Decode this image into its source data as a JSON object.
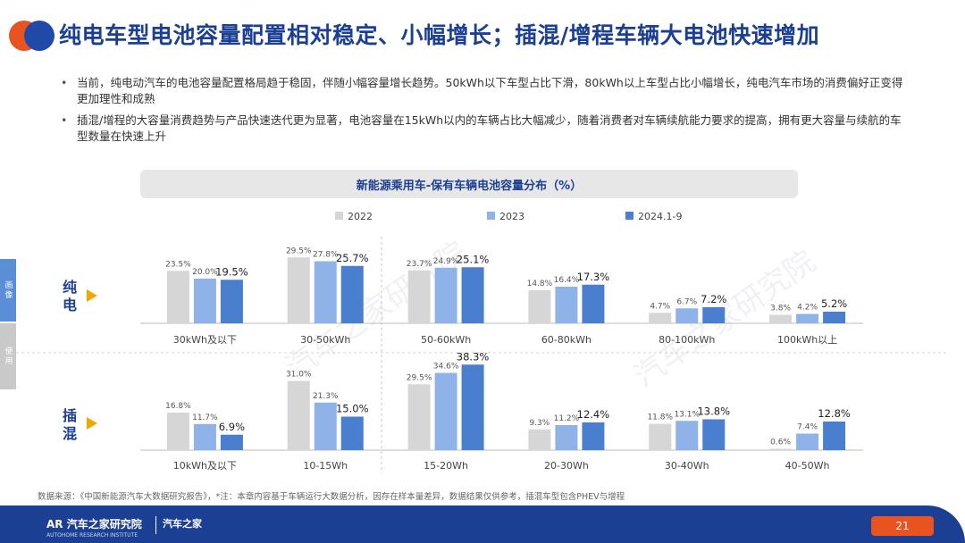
{
  "page_title": "纯电车型电池容量配置相对稳定、小幅增长；插混/增程车辆大电池快速增加",
  "bullets": [
    "当前，纯电动汽车的电池容量配置格局趋于稳固，伴随小幅容量增长趋势。50kWh以下车型占比下滑，80kWh以上车型占比小幅增长，纯电汽车市场的消费偏好正变得更加理性和成熟",
    "插混/增程的大容量消费趋势与产品快速迭代更为显著，电池容量在15kWh以内的车辆占比大幅减少，随着消费者对车辆续航能力要求的提高，拥有更大容量与续航的车型数量在快速上升"
  ],
  "side_tabs": {
    "top": "画像",
    "bottom": "使用"
  },
  "row_labels": {
    "bev": "纯电",
    "phev": "插混"
  },
  "watermark": "汽车之家研究院",
  "footer": {
    "source": "数据来源：《中国新能源汽车大数据研究报告》，*注：本章内容基于车辆运行大数据分析，因存在样本量差异，数据结果仅供参考，插混车型包含PHEV与增程",
    "brand": "AR 汽车之家研究院",
    "brand_sub": "AUTOHOME RESEARCH INSTITUTE",
    "brand2": "汽车之家",
    "page_number": "21"
  },
  "colors": {
    "2022": "#d6d6d6",
    "2023": "#8fb3e8",
    "2024": "#4a7fd0",
    "title": "#1b3f93",
    "accent": "#e8531f"
  },
  "chart_data": {
    "type": "bar",
    "title": "新能源乘用车-保有车辆电池容量分布（%）",
    "legend": [
      "2022",
      "2023",
      "2024.1-9"
    ],
    "legend_position": "top",
    "panels": [
      {
        "name": "纯电",
        "categories": [
          "30kWh及以下",
          "30-50kWh",
          "50-60kWh",
          "60-80kWh",
          "80-100kWh",
          "100kWh以上"
        ],
        "series": [
          {
            "name": "2022",
            "values": [
              23.5,
              29.5,
              23.7,
              14.8,
              4.7,
              3.8
            ]
          },
          {
            "name": "2023",
            "values": [
              20.0,
              27.8,
              24.9,
              16.4,
              6.7,
              4.2
            ]
          },
          {
            "name": "2024.1-9",
            "values": [
              19.5,
              25.7,
              25.1,
              17.3,
              7.2,
              5.2
            ]
          }
        ],
        "ylim": [
          0,
          40
        ]
      },
      {
        "name": "插混",
        "categories": [
          "10kWh及以下",
          "10-15Wh",
          "15-20Wh",
          "20-30Wh",
          "30-40Wh",
          "40-50Wh"
        ],
        "series": [
          {
            "name": "2022",
            "values": [
              16.8,
              31.0,
              29.5,
              9.3,
              11.8,
              0.6
            ]
          },
          {
            "name": "2023",
            "values": [
              11.7,
              21.3,
              34.6,
              11.2,
              13.1,
              7.4
            ]
          },
          {
            "name": "2024.1-9",
            "values": [
              6.9,
              15.0,
              38.3,
              12.4,
              13.8,
              12.8
            ]
          }
        ],
        "ylim": [
          0,
          40
        ]
      }
    ]
  }
}
